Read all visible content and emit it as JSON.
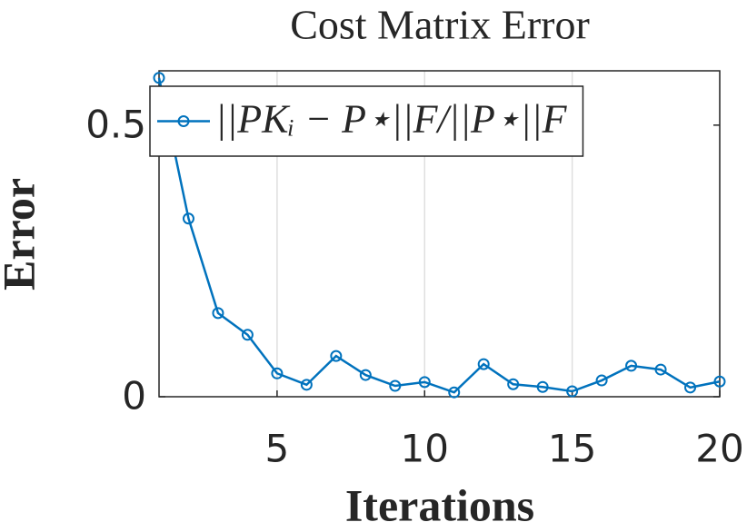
{
  "chart_data": {
    "type": "line",
    "title": "Cost Matrix Error",
    "x_label": "Iterations",
    "y_label": "Error",
    "x": [
      1,
      2,
      3,
      4,
      5,
      6,
      7,
      8,
      9,
      10,
      11,
      12,
      13,
      14,
      15,
      16,
      17,
      18,
      19,
      20
    ],
    "series": [
      {
        "name": "||PKᵢ − P⋆||F/||P⋆||F",
        "color": "#0072bd",
        "values": [
          0.587,
          0.328,
          0.154,
          0.114,
          0.043,
          0.022,
          0.075,
          0.04,
          0.02,
          0.027,
          0.008,
          0.06,
          0.023,
          0.018,
          0.01,
          0.03,
          0.057,
          0.05,
          0.017,
          0.028
        ]
      }
    ],
    "xlim": [
      1,
      20
    ],
    "ylim": [
      0,
      0.6
    ],
    "xticks": [
      5,
      10,
      15,
      20
    ],
    "yticks": [
      0,
      0.5
    ],
    "grid": "x",
    "legend": "northwest"
  }
}
